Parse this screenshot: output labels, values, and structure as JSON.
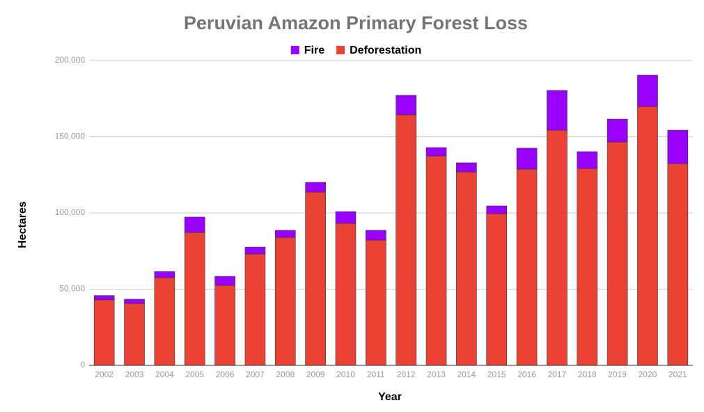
{
  "chart_data": {
    "type": "stacked_bar",
    "title": "Peruvian Amazon Primary Forest Loss",
    "x_label": "Year",
    "y_label": "Hectares",
    "categories": [
      "2002",
      "2003",
      "2004",
      "2005",
      "2006",
      "2007",
      "2008",
      "2009",
      "2010",
      "2011",
      "2012",
      "2013",
      "2014",
      "2015",
      "2016",
      "2017",
      "2018",
      "2019",
      "2020",
      "2021"
    ],
    "series": [
      {
        "name": "Fire",
        "color": "#9900ff",
        "values": [
          2800,
          2800,
          4100,
          10100,
          5900,
          4500,
          4600,
          6400,
          7700,
          6400,
          12800,
          5500,
          6000,
          5100,
          13700,
          26100,
          11000,
          15000,
          20500,
          21900
        ]
      },
      {
        "name": "Deforestation",
        "color": "#ea4335",
        "values": [
          43000,
          40600,
          57500,
          87200,
          52500,
          73100,
          84000,
          113700,
          93200,
          82200,
          164400,
          137400,
          126900,
          99500,
          128800,
          154300,
          129200,
          146600,
          169900,
          132400
        ]
      }
    ],
    "ylim": [
      0,
      200000
    ],
    "yticks": [
      0,
      {
        "value": 50000,
        "label": "50,000"
      },
      {
        "value": 100000,
        "label": "100,000"
      },
      {
        "value": 150000,
        "label": "150,000"
      },
      {
        "value": 200000,
        "label": "200,000"
      }
    ],
    "grid": true,
    "legend": "top"
  }
}
